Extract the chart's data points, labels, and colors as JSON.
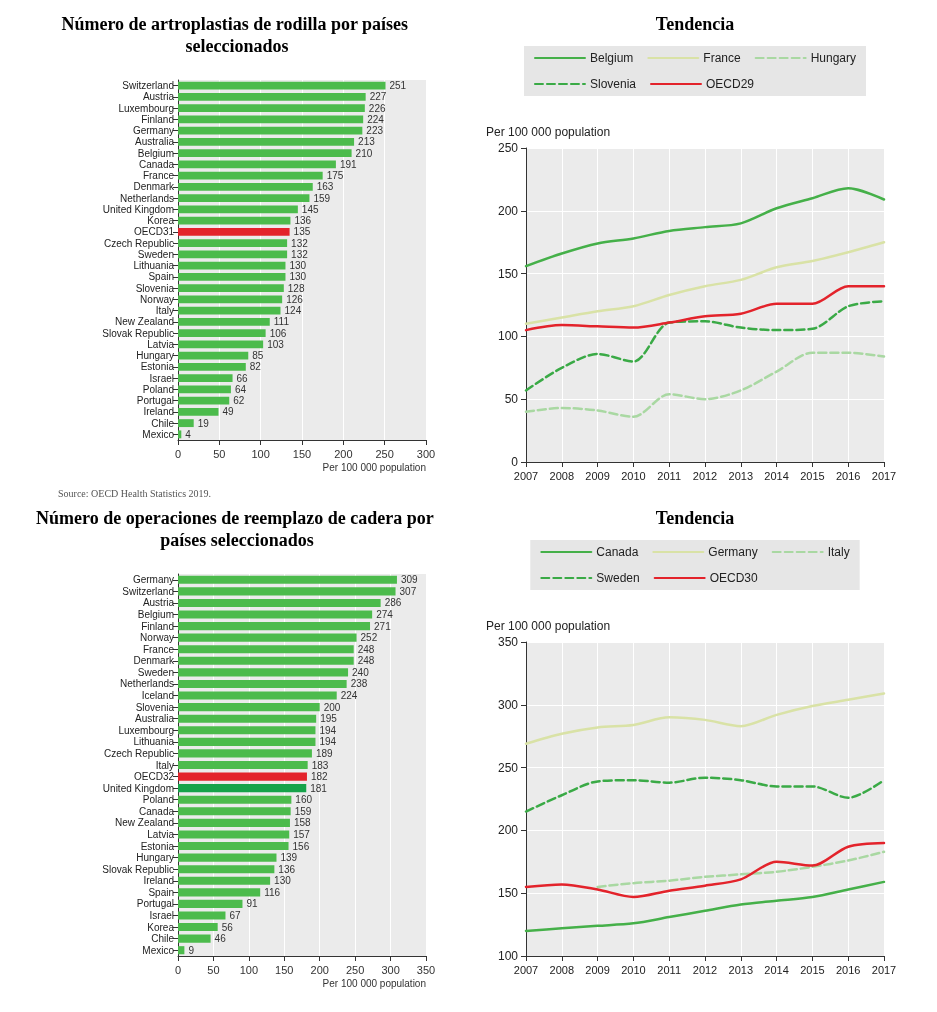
{
  "chart_data": [
    {
      "type": "bar",
      "orientation": "horizontal",
      "title": "Número de artroplastias de rodilla por países seleccionados",
      "categories": [
        "Switzerland",
        "Austria",
        "Luxembourg",
        "Finland",
        "Germany",
        "Australia",
        "Belgium",
        "Canada",
        "France",
        "Denmark",
        "Netherlands",
        "United Kingdom",
        "Korea",
        "OECD31",
        "Czech Republic",
        "Sweden",
        "Lithuania",
        "Spain",
        "Slovenia",
        "Norway",
        "Italy",
        "New Zealand",
        "Slovak Republic",
        "Latvia",
        "Hungary",
        "Estonia",
        "Israel",
        "Poland",
        "Portugal",
        "Ireland",
        "Chile",
        "Mexico"
      ],
      "values": [
        251,
        227,
        226,
        224,
        223,
        213,
        210,
        191,
        175,
        163,
        159,
        145,
        136,
        135,
        132,
        132,
        130,
        130,
        128,
        126,
        124,
        111,
        106,
        103,
        85,
        82,
        66,
        64,
        62,
        49,
        19,
        4
      ],
      "colors": [
        "#4cbb4c",
        "#4cbb4c",
        "#4cbb4c",
        "#4cbb4c",
        "#4cbb4c",
        "#4cbb4c",
        "#4cbb4c",
        "#4cbb4c",
        "#4cbb4c",
        "#4cbb4c",
        "#4cbb4c",
        "#4cbb4c",
        "#4cbb4c",
        "#e3232b",
        "#4cbb4c",
        "#4cbb4c",
        "#4cbb4c",
        "#4cbb4c",
        "#4cbb4c",
        "#4cbb4c",
        "#4cbb4c",
        "#4cbb4c",
        "#4cbb4c",
        "#4cbb4c",
        "#4cbb4c",
        "#4cbb4c",
        "#4cbb4c",
        "#4cbb4c",
        "#4cbb4c",
        "#4cbb4c",
        "#4cbb4c",
        "#4cbb4c"
      ],
      "xlim": [
        0,
        300
      ],
      "xticks": [
        0,
        50,
        100,
        150,
        200,
        250,
        300
      ],
      "xlabel": "Per 100 000 population",
      "data_labels": true,
      "grid": "x",
      "annotations": [
        "Source: OECD Health Statistics 2019."
      ]
    },
    {
      "type": "line",
      "title": "Tendencia",
      "categories": [
        "2007",
        "2008",
        "2009",
        "2010",
        "2011",
        "2012",
        "2013",
        "2014",
        "2015",
        "2016",
        "2017"
      ],
      "ylabel": "Per 100 000 population",
      "ylim": [
        0,
        250
      ],
      "yticks": [
        0,
        50,
        100,
        150,
        200,
        250
      ],
      "grid": true,
      "legend": "top",
      "series": [
        {
          "name": "Belgium",
          "color": "#45b049",
          "line_style": "solid",
          "values": [
            156,
            166,
            174,
            178,
            184,
            187,
            190,
            202,
            210,
            218,
            209
          ]
        },
        {
          "name": "France",
          "color": "#d9e2a6",
          "line_style": "solid",
          "values": [
            110,
            115,
            120,
            124,
            133,
            140,
            145,
            155,
            160,
            167,
            175
          ]
        },
        {
          "name": "Hungary",
          "color": "#a9d8a2",
          "line_style": "dashed",
          "values": [
            40,
            43,
            41,
            36,
            54,
            50,
            57,
            72,
            87,
            87,
            84
          ]
        },
        {
          "name": "Slovenia",
          "color": "#3aaa46",
          "line_style": "dashed",
          "values": [
            57,
            75,
            86,
            80,
            111,
            112,
            107,
            105,
            106,
            124,
            128
          ]
        },
        {
          "name": "OECD29",
          "color": "#e3232b",
          "line_style": "solid",
          "values": [
            105,
            109,
            108,
            107,
            111,
            116,
            118,
            126,
            126,
            140,
            140
          ]
        }
      ]
    },
    {
      "type": "bar",
      "orientation": "horizontal",
      "title": "Número de operaciones de reemplazo de cadera por países seleccionados",
      "categories": [
        "Germany",
        "Switzerland",
        "Austria",
        "Belgium",
        "Finland",
        "Norway",
        "France",
        "Denmark",
        "Sweden",
        "Netherlands",
        "Iceland",
        "Slovenia",
        "Australia",
        "Luxembourg",
        "Lithuania",
        "Czech Republic",
        "Italy",
        "OECD32",
        "United Kingdom",
        "Poland",
        "Canada",
        "New Zealand",
        "Latvia",
        "Estonia",
        "Hungary",
        "Slovak Republic",
        "Ireland",
        "Spain",
        "Portugal",
        "Israel",
        "Korea",
        "Chile",
        "Mexico"
      ],
      "values": [
        309,
        307,
        286,
        274,
        271,
        252,
        248,
        248,
        240,
        238,
        224,
        200,
        195,
        194,
        194,
        189,
        183,
        182,
        181,
        160,
        159,
        158,
        157,
        156,
        139,
        136,
        130,
        116,
        91,
        67,
        56,
        46,
        9
      ],
      "colors": [
        "#4cbb4c",
        "#4cbb4c",
        "#4cbb4c",
        "#4cbb4c",
        "#4cbb4c",
        "#4cbb4c",
        "#4cbb4c",
        "#4cbb4c",
        "#4cbb4c",
        "#4cbb4c",
        "#4cbb4c",
        "#4cbb4c",
        "#4cbb4c",
        "#4cbb4c",
        "#4cbb4c",
        "#4cbb4c",
        "#4cbb4c",
        "#e3232b",
        "#16a34a",
        "#4cbb4c",
        "#4cbb4c",
        "#4cbb4c",
        "#4cbb4c",
        "#4cbb4c",
        "#4cbb4c",
        "#4cbb4c",
        "#4cbb4c",
        "#4cbb4c",
        "#4cbb4c",
        "#4cbb4c",
        "#4cbb4c",
        "#4cbb4c",
        "#4cbb4c"
      ],
      "xlim": [
        0,
        350
      ],
      "xticks": [
        0,
        50,
        100,
        150,
        200,
        250,
        300,
        350
      ],
      "xlabel": "Per 100 000 population",
      "data_labels": true,
      "grid": "x"
    },
    {
      "type": "line",
      "title": "Tendencia",
      "categories": [
        "2007",
        "2008",
        "2009",
        "2010",
        "2011",
        "2012",
        "2013",
        "2014",
        "2015",
        "2016",
        "2017"
      ],
      "ylabel": "Per 100 000 population",
      "ylim": [
        100,
        350
      ],
      "yticks": [
        100,
        150,
        200,
        250,
        300,
        350
      ],
      "grid": true,
      "legend": "top",
      "series": [
        {
          "name": "Canada",
          "color": "#45b049",
          "line_style": "solid",
          "values": [
            120,
            122,
            124,
            126,
            131,
            136,
            141,
            144,
            147,
            153,
            159
          ]
        },
        {
          "name": "Germany",
          "color": "#d9e2a6",
          "line_style": "solid",
          "values": [
            269,
            277,
            282,
            284,
            290,
            288,
            283,
            292,
            299,
            304,
            309
          ]
        },
        {
          "name": "Italy",
          "color": "#a9d8a2",
          "line_style": "dashed",
          "values": [
            null,
            null,
            155,
            158,
            160,
            163,
            165,
            167,
            171,
            176,
            183
          ]
        },
        {
          "name": "Sweden",
          "color": "#3aaa46",
          "line_style": "dashed",
          "values": [
            215,
            228,
            239,
            240,
            238,
            242,
            240,
            235,
            235,
            226,
            240
          ]
        },
        {
          "name": "OECD30",
          "color": "#e3232b",
          "line_style": "solid",
          "values": [
            155,
            157,
            153,
            147,
            152,
            156,
            161,
            175,
            172,
            187,
            190
          ]
        }
      ]
    }
  ]
}
